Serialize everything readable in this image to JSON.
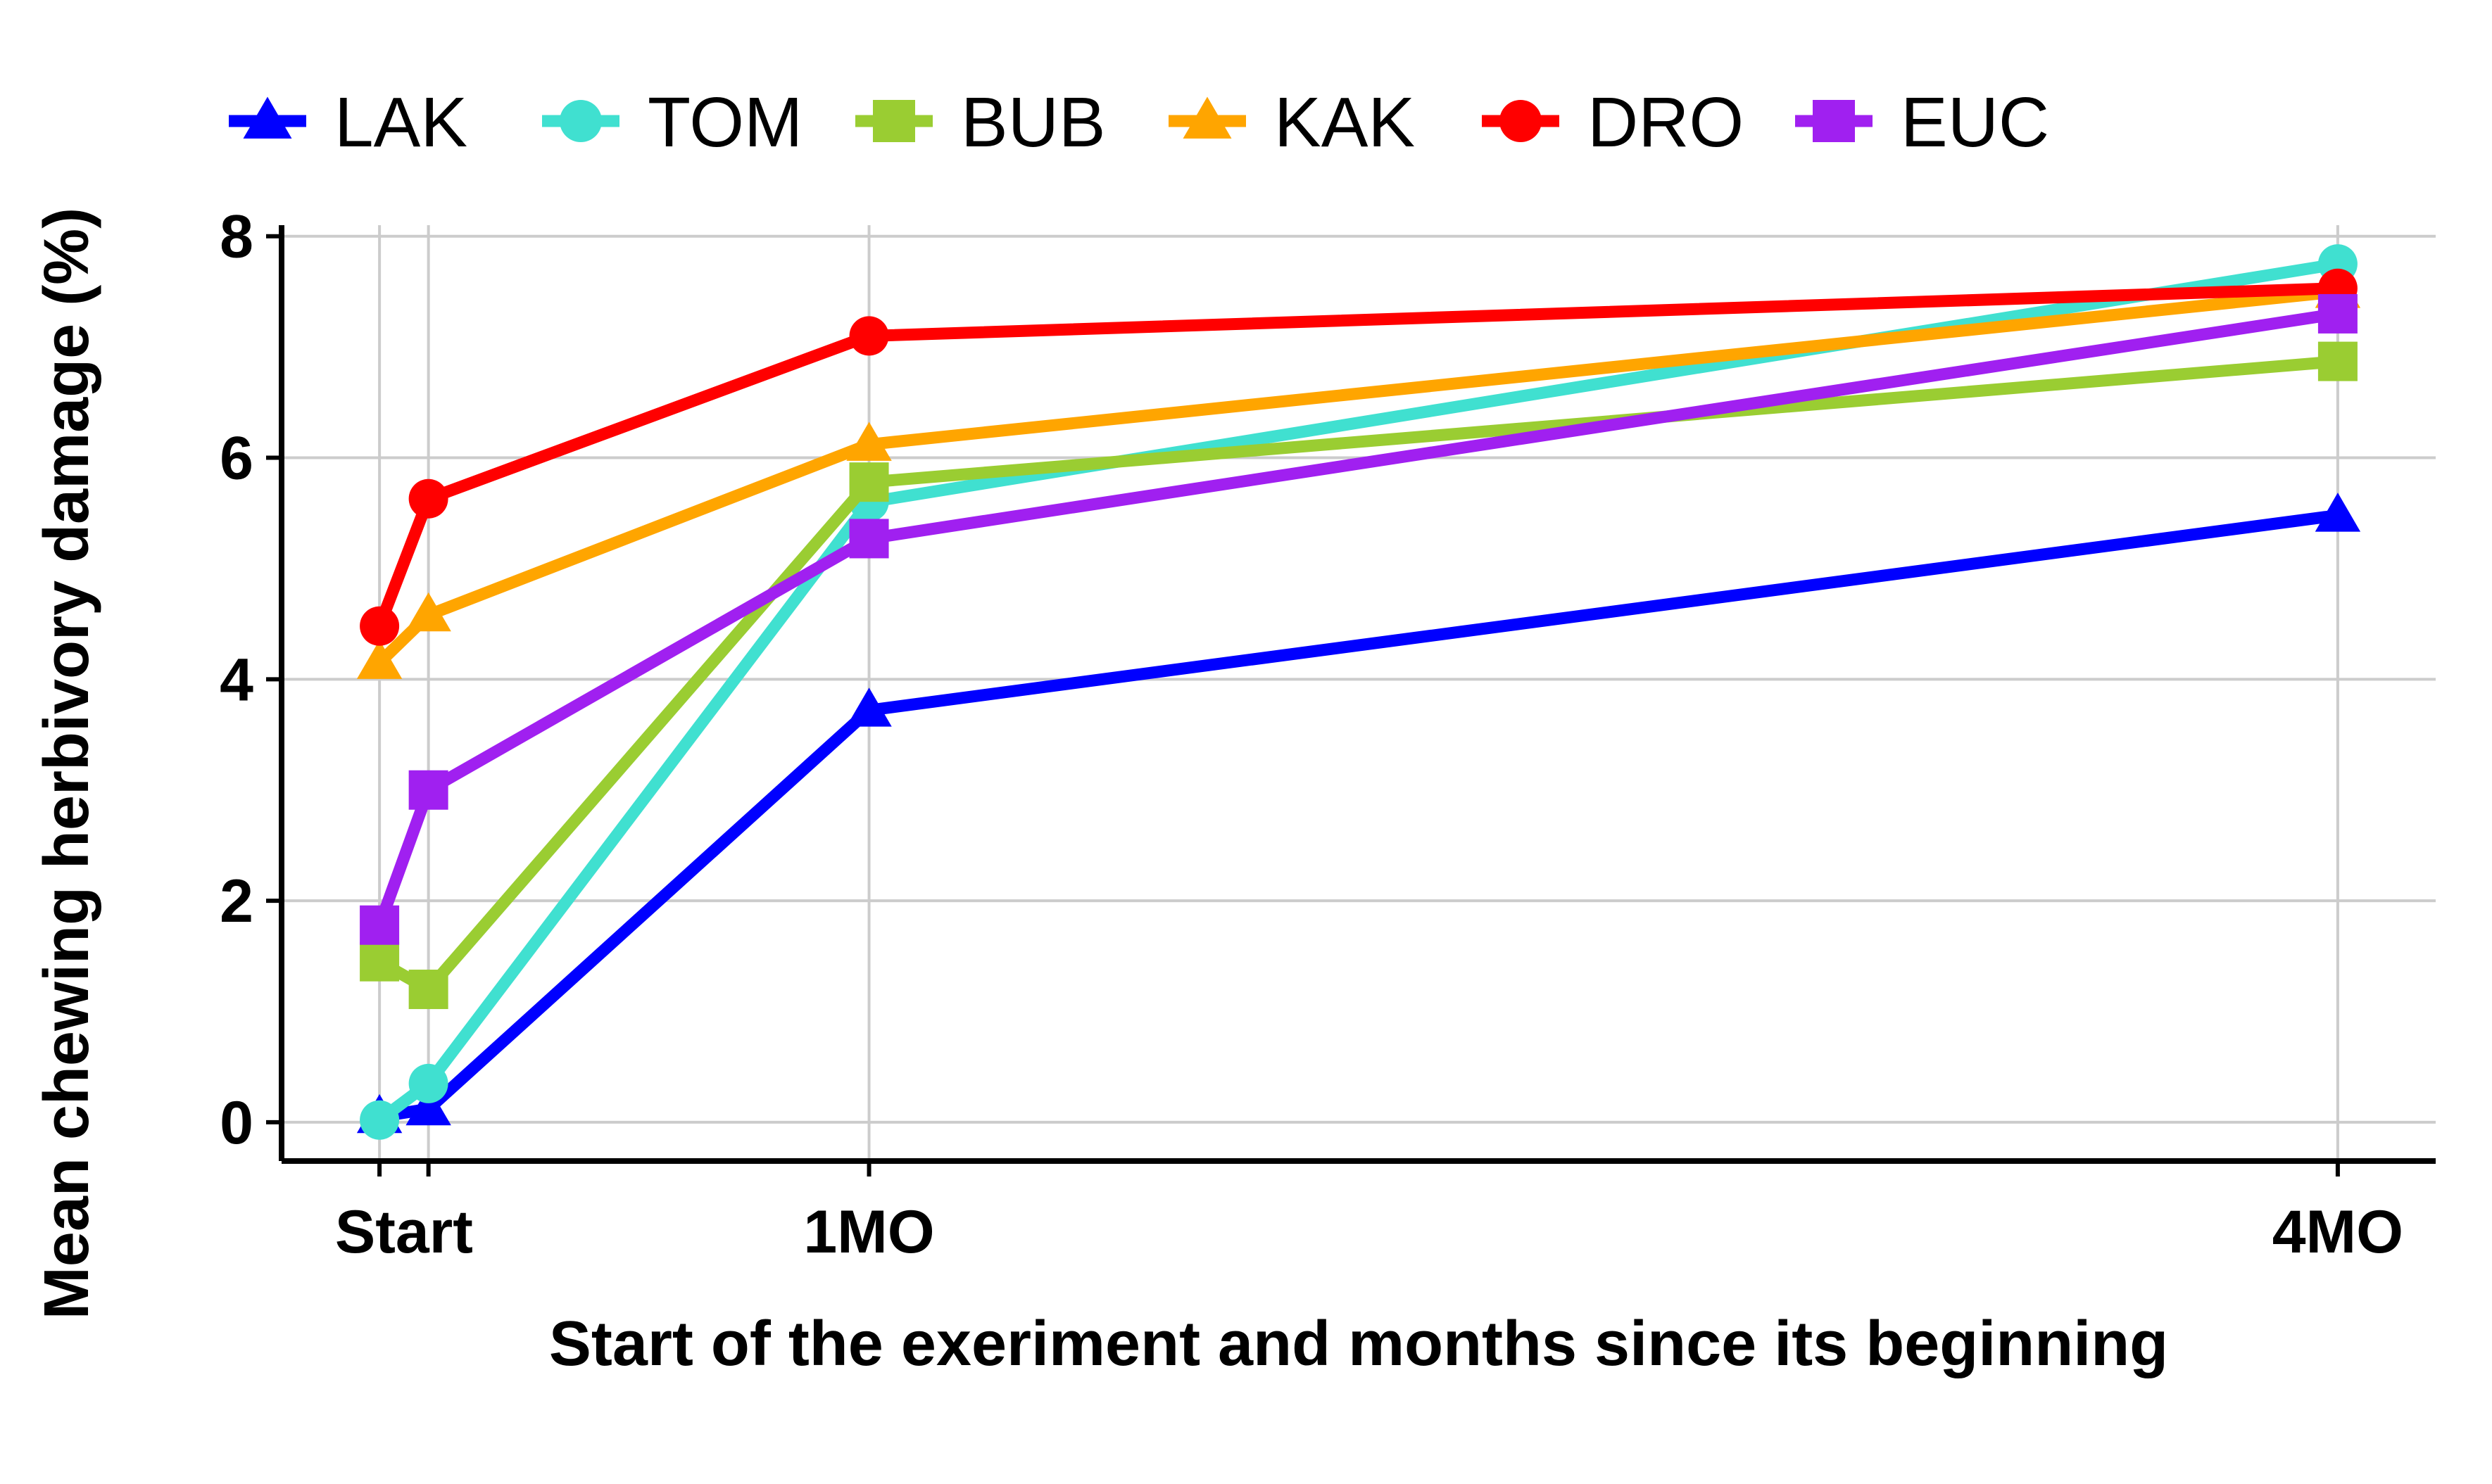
{
  "chart_data": {
    "type": "line",
    "title": "",
    "xlabel": "Start of the exeriment and months since its beginning",
    "ylabel": "Mean chewing herbivory damage (%)",
    "x_months": [
      0,
      0.1,
      1,
      4
    ],
    "x_tick_labels": [
      {
        "x": 0.05,
        "label": "Start"
      },
      {
        "x": 1,
        "label": "1MO"
      },
      {
        "x": 4,
        "label": "4MO"
      }
    ],
    "y_ticks": [
      0,
      2,
      4,
      6,
      8
    ],
    "ylim": [
      -0.35,
      8.1
    ],
    "xlim": [
      -0.2,
      4.2
    ],
    "grid": true,
    "legend_position": "top",
    "series": [
      {
        "name": "LAK",
        "color": "#0000ff",
        "marker": "triangle",
        "values": [
          0.05,
          0.12,
          3.72,
          5.48
        ]
      },
      {
        "name": "TOM",
        "color": "#40e0d0",
        "marker": "circle",
        "values": [
          0.02,
          0.35,
          5.6,
          7.75
        ]
      },
      {
        "name": "BUB",
        "color": "#9acd32",
        "marker": "square",
        "values": [
          1.45,
          1.2,
          5.78,
          6.87
        ]
      },
      {
        "name": "KAK",
        "color": "#ffa500",
        "marker": "triangle",
        "values": [
          4.15,
          4.58,
          6.12,
          7.5
        ]
      },
      {
        "name": "DRO",
        "color": "#ff0000",
        "marker": "circle",
        "values": [
          4.48,
          5.63,
          7.1,
          7.53
        ]
      },
      {
        "name": "EUC",
        "color": "#a020f0",
        "marker": "square",
        "values": [
          1.78,
          3.0,
          5.27,
          7.3
        ]
      }
    ]
  }
}
